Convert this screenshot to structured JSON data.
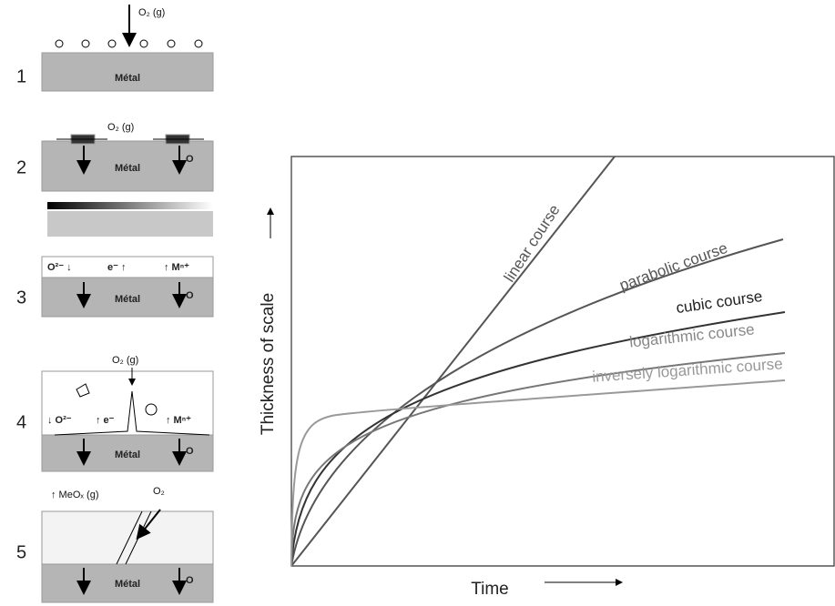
{
  "steps": [
    {
      "number": "1",
      "labels": [
        "O₂ (g)",
        "Métal"
      ]
    },
    {
      "number": "2",
      "labels": [
        "O₂ (g)",
        "Métal",
        "O"
      ]
    },
    {
      "number": "3",
      "labels": [
        "O²⁻ ↓",
        "e⁻ ↑",
        "↑ Mⁿ⁺",
        "Métal",
        "O"
      ]
    },
    {
      "number": "4",
      "labels": [
        "O₂ (g)",
        "↓ O²⁻",
        "↑ e⁻",
        "↑ Mⁿ⁺",
        "Métal",
        "O"
      ]
    },
    {
      "number": "5",
      "labels": [
        "↑ MeOₓ (g)",
        "O₂",
        "Métal",
        "O"
      ]
    }
  ],
  "graph": {
    "y_label": "Thickness of scale",
    "x_label": "Time",
    "curves": [
      "linear course",
      "parabolic course",
      "cubic course",
      "logarithmic course",
      "inversely logarithmic course"
    ]
  }
}
